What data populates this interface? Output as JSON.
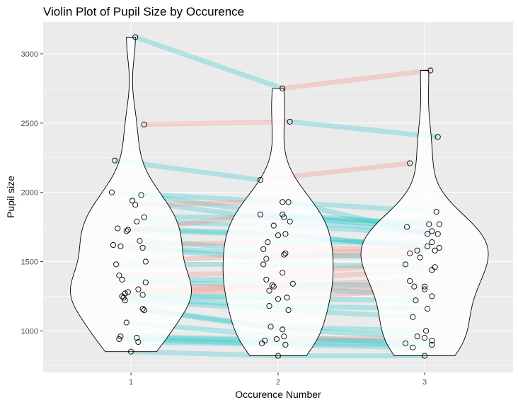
{
  "chart_data": {
    "type": "violin",
    "title": "Violin Plot of Pupil Size by Occurence",
    "xlabel": "Occurence Number",
    "ylabel": "Pupil size",
    "categories": [
      "1",
      "2",
      "3"
    ],
    "ylim": [
      700,
      3230
    ],
    "yticks": [
      1000,
      1500,
      2000,
      2500,
      3000
    ],
    "colors": {
      "panel": "#ebebeb",
      "grid": "#ffffff",
      "increase": "#f8766d",
      "decrease": "#00bfc4"
    },
    "grid": true,
    "legend": "none",
    "violins": [
      {
        "category": "1",
        "min": 850,
        "max": 3120
      },
      {
        "category": "2",
        "min": 820,
        "max": 2750
      },
      {
        "category": "3",
        "min": 820,
        "max": 2880
      }
    ],
    "subjects": [
      {
        "values": [
          3120,
          2750,
          2880
        ],
        "offsets": [
          0.03,
          0.03,
          0.04
        ]
      },
      {
        "values": [
          2490,
          2510,
          2400
        ],
        "offsets": [
          0.09,
          0.08,
          0.09
        ]
      },
      {
        "values": [
          2230,
          2090,
          2210
        ],
        "offsets": [
          -0.11,
          -0.12,
          -0.1
        ]
      },
      {
        "values": [
          2000,
          1930,
          1860
        ],
        "offsets": [
          -0.13,
          0.03,
          0.08
        ]
      },
      {
        "values": [
          1980,
          1840,
          1770
        ],
        "offsets": [
          0.07,
          0.03,
          0.03
        ]
      },
      {
        "values": [
          1940,
          1790,
          1720
        ],
        "offsets": [
          0.01,
          0.08,
          0.05
        ]
      },
      {
        "values": [
          1910,
          1930,
          1700
        ],
        "offsets": [
          0.03,
          0.07,
          0.02
        ]
      },
      {
        "values": [
          1820,
          1820,
          1770
        ],
        "offsets": [
          0.09,
          0.04,
          0.1
        ]
      },
      {
        "values": [
          1790,
          1760,
          1700
        ],
        "offsets": [
          0.04,
          -0.03,
          0.09
        ]
      },
      {
        "values": [
          1740,
          1700,
          1580
        ],
        "offsets": [
          -0.09,
          0.05,
          0.07
        ]
      },
      {
        "values": [
          1730,
          1690,
          1610
        ],
        "offsets": [
          -0.02,
          0.0,
          0.02
        ]
      },
      {
        "values": [
          1720,
          1840,
          1750
        ],
        "offsets": [
          -0.03,
          -0.12,
          -0.12
        ]
      },
      {
        "values": [
          1650,
          1590,
          1600
        ],
        "offsets": [
          0.06,
          -0.1,
          0.1
        ]
      },
      {
        "values": [
          1620,
          1640,
          1640
        ],
        "offsets": [
          -0.12,
          -0.07,
          0.05
        ]
      },
      {
        "values": [
          1610,
          1520,
          1560
        ],
        "offsets": [
          -0.07,
          -0.08,
          -0.1
        ]
      },
      {
        "values": [
          1600,
          1550,
          1530
        ],
        "offsets": [
          0.08,
          0.04,
          -0.03
        ]
      },
      {
        "values": [
          1500,
          1560,
          1580
        ],
        "offsets": [
          0.1,
          0.05,
          -0.05
        ]
      },
      {
        "values": [
          1480,
          1480,
          1460
        ],
        "offsets": [
          -0.1,
          -0.1,
          0.07
        ]
      },
      {
        "values": [
          1400,
          1420,
          1480
        ],
        "offsets": [
          -0.08,
          0.03,
          -0.13
        ]
      },
      {
        "values": [
          1370,
          1370,
          1440
        ],
        "offsets": [
          -0.06,
          -0.08,
          0.05
        ]
      },
      {
        "values": [
          1350,
          1330,
          1360
        ],
        "offsets": [
          0.1,
          -0.04,
          -0.1
        ]
      },
      {
        "values": [
          1300,
          1340,
          1320
        ],
        "offsets": [
          0.05,
          0.1,
          0.0
        ]
      },
      {
        "values": [
          1280,
          1320,
          1250
        ],
        "offsets": [
          -0.02,
          -0.03,
          0.05
        ]
      },
      {
        "values": [
          1270,
          1290,
          1320
        ],
        "offsets": [
          -0.04,
          -0.06,
          -0.07
        ]
      },
      {
        "values": [
          1260,
          1240,
          1300
        ],
        "offsets": [
          0.08,
          0.06,
          0.0
        ]
      },
      {
        "values": [
          1250,
          1230,
          1220
        ],
        "offsets": [
          -0.06,
          0.0,
          -0.06
        ]
      },
      {
        "values": [
          1240,
          1180,
          1160
        ],
        "offsets": [
          -0.05,
          -0.06,
          0.02
        ]
      },
      {
        "values": [
          1220,
          1150,
          1100
        ],
        "offsets": [
          -0.04,
          0.07,
          -0.08
        ]
      },
      {
        "values": [
          1160,
          1030,
          1000
        ],
        "offsets": [
          0.08,
          -0.05,
          0.01
        ]
      },
      {
        "values": [
          1150,
          1010,
          960
        ],
        "offsets": [
          0.09,
          0.03,
          -0.05
        ]
      },
      {
        "values": [
          1060,
          960,
          910
        ],
        "offsets": [
          -0.03,
          0.04,
          -0.13
        ]
      },
      {
        "values": [
          960,
          940,
          950
        ],
        "offsets": [
          -0.07,
          -0.01,
          0.0
        ]
      },
      {
        "values": [
          950,
          930,
          930
        ],
        "offsets": [
          0.04,
          -0.09,
          0.05
        ]
      },
      {
        "values": [
          940,
          910,
          900
        ],
        "offsets": [
          -0.08,
          -0.11,
          0.05
        ]
      },
      {
        "values": [
          920,
          900,
          880
        ],
        "offsets": [
          0.05,
          0.05,
          -0.08
        ]
      },
      {
        "values": [
          850,
          820,
          820
        ],
        "offsets": [
          0.0,
          0.0,
          0.0
        ]
      }
    ]
  }
}
